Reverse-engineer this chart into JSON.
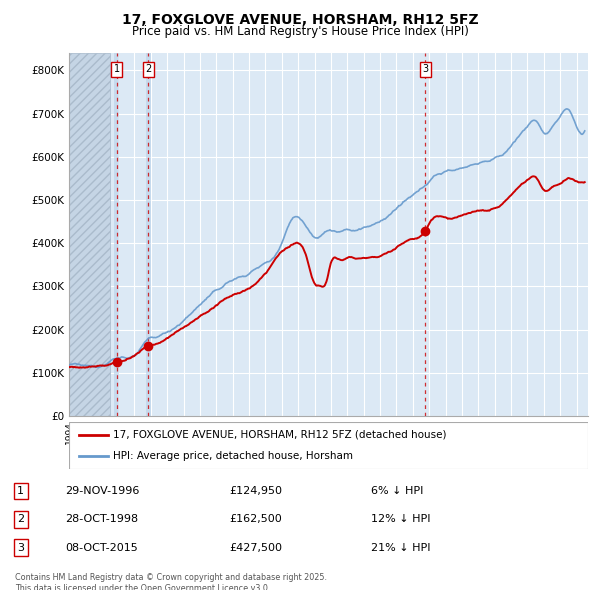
{
  "title": "17, FOXGLOVE AVENUE, HORSHAM, RH12 5FZ",
  "subtitle": "Price paid vs. HM Land Registry's House Price Index (HPI)",
  "ylabel_ticks": [
    "£0",
    "£100K",
    "£200K",
    "£300K",
    "£400K",
    "£500K",
    "£600K",
    "£700K",
    "£800K"
  ],
  "ytick_vals": [
    0,
    100000,
    200000,
    300000,
    400000,
    500000,
    600000,
    700000,
    800000
  ],
  "ylim": [
    0,
    840000
  ],
  "xlim_start": 1994.0,
  "xlim_end": 2025.7,
  "sales": [
    {
      "num": 1,
      "date_label": "29-NOV-1996",
      "price": 124950,
      "year": 1996.91,
      "pct": "6%"
    },
    {
      "num": 2,
      "date_label": "28-OCT-1998",
      "price": 162500,
      "year": 1998.83,
      "pct": "12%"
    },
    {
      "num": 3,
      "date_label": "08-OCT-2015",
      "price": 427500,
      "year": 2015.77,
      "pct": "21%"
    }
  ],
  "legend_line1": "17, FOXGLOVE AVENUE, HORSHAM, RH12 5FZ (detached house)",
  "legend_line2": "HPI: Average price, detached house, Horsham",
  "footnote": "Contains HM Land Registry data © Crown copyright and database right 2025.\nThis data is licensed under the Open Government Licence v3.0.",
  "line_color_red": "#cc0000",
  "line_color_blue": "#6699cc",
  "chart_bg": "#dce9f5",
  "grid_color": "#ffffff",
  "background_color": "#ffffff",
  "hatch_area_color": "#c8d8e8"
}
